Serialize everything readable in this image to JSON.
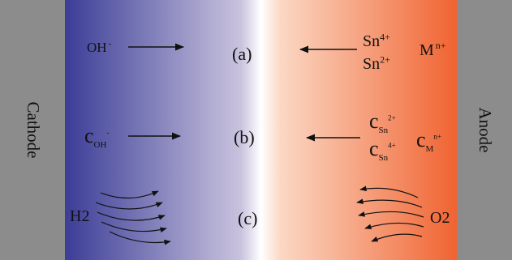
{
  "electrodes": {
    "cathode": {
      "label": "Cathode",
      "color": "#8c8c8c"
    },
    "anode": {
      "label": "Anode",
      "color": "#8c8c8c"
    }
  },
  "gradient": {
    "left_color": "#3b3d97",
    "center_color": "#ffffff",
    "right_color": "#f06331"
  },
  "rows": {
    "a": {
      "label": "(a)",
      "left_species": "OH",
      "left_charge": "-",
      "right_species_1": "Sn",
      "right_charge_1": "4+",
      "right_species_2": "Sn",
      "right_charge_2": "2+",
      "right_species_3": "M",
      "right_charge_3": "n+"
    },
    "b": {
      "label": "(b)",
      "c_symbol": "c",
      "sub_oh": "OH",
      "sub_oh_charge": "-",
      "sub_sn2": "Sn",
      "sub_sn2_charge": "2+",
      "sub_sn4": "Sn",
      "sub_sn4_charge": "4+",
      "sub_m": "M",
      "sub_m_charge": "n+"
    },
    "c": {
      "label": "(c)",
      "left_gas": "H2",
      "right_gas": "O2"
    }
  },
  "icons": [
    "arrow-right-icon",
    "arrow-left-icon",
    "curved-arrow-icon"
  ]
}
